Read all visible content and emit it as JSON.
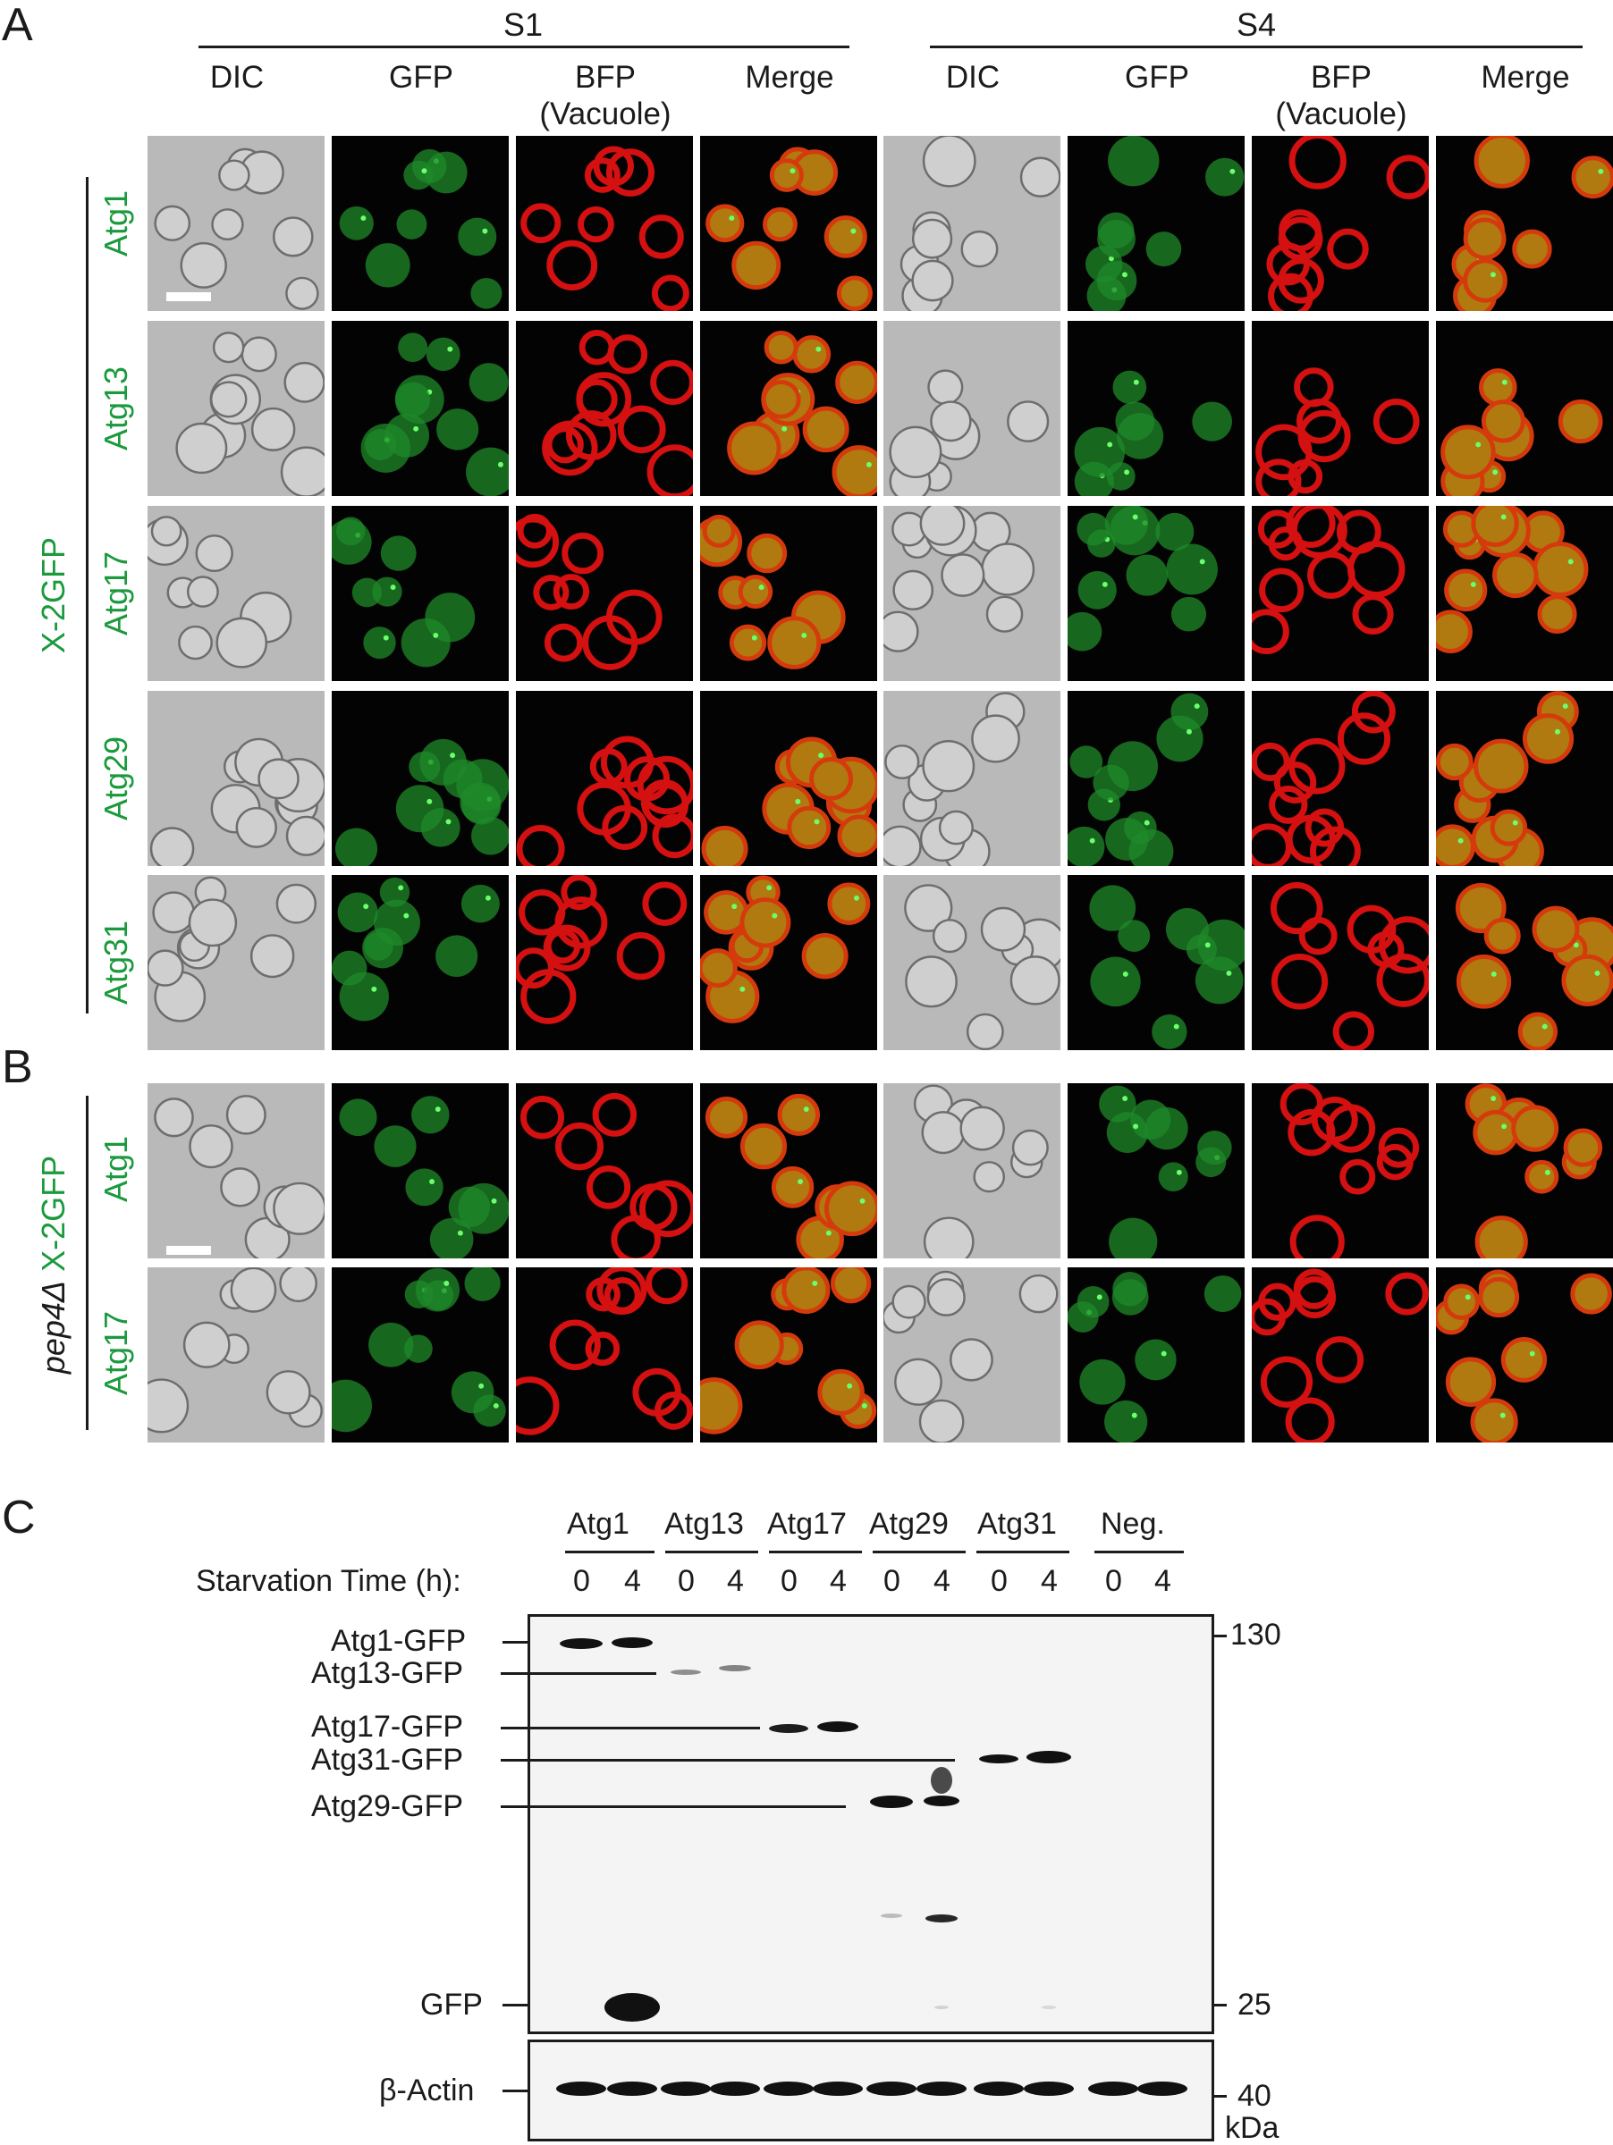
{
  "panels": {
    "a": "A",
    "b": "B",
    "c": "C"
  },
  "conditions": [
    {
      "label": "S1",
      "channels": [
        "DIC",
        "GFP",
        "BFP",
        "Merge"
      ]
    },
    {
      "label": "S4",
      "channels": [
        "DIC",
        "GFP",
        "BFP",
        "Merge"
      ]
    }
  ],
  "bfp_sub": "(Vacuole)",
  "group_a": {
    "label": "X-2GFP",
    "rows": [
      "Atg1",
      "Atg13",
      "Atg17",
      "Atg29",
      "Atg31"
    ]
  },
  "group_b": {
    "prefix": "pep4Δ",
    "label": "X-2GFP",
    "rows": [
      "Atg1",
      "Atg17"
    ]
  },
  "western": {
    "strains": [
      "Atg1",
      "Atg13",
      "Atg17",
      "Atg29",
      "Atg31",
      "Neg."
    ],
    "time_label": "Starvation Time (h):",
    "times": [
      "0",
      "4",
      "0",
      "4",
      "0",
      "4",
      "0",
      "4",
      "0",
      "4",
      "0",
      "4"
    ],
    "band_labels": [
      "Atg1-GFP",
      "Atg13-GFP",
      "Atg17-GFP",
      "Atg31-GFP",
      "Atg29-GFP",
      "GFP"
    ],
    "markers": [
      "130",
      "25"
    ],
    "actin_label": "β-Actin",
    "actin_marker": "40",
    "unit": "kDa"
  },
  "colors": {
    "gfp": "#1a9a3c",
    "bfp": "#e01515",
    "ink": "#1b1b1b"
  }
}
